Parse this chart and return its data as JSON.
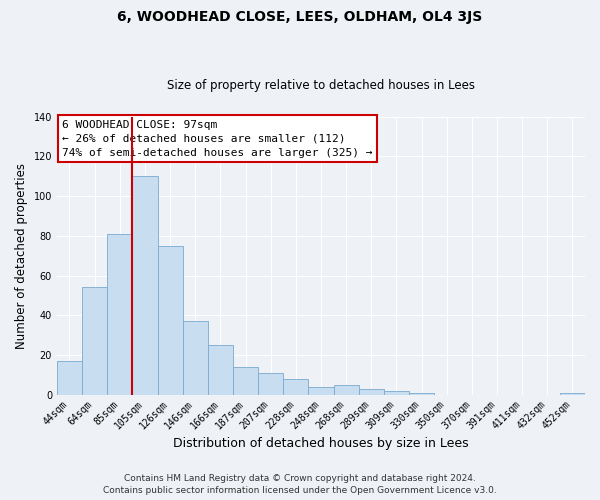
{
  "title": "6, WOODHEAD CLOSE, LEES, OLDHAM, OL4 3JS",
  "subtitle": "Size of property relative to detached houses in Lees",
  "xlabel": "Distribution of detached houses by size in Lees",
  "ylabel": "Number of detached properties",
  "bar_color": "#c8ddf0",
  "bar_edge_color": "#7aaad0",
  "categories": [
    "44sqm",
    "64sqm",
    "85sqm",
    "105sqm",
    "126sqm",
    "146sqm",
    "166sqm",
    "187sqm",
    "207sqm",
    "228sqm",
    "248sqm",
    "268sqm",
    "289sqm",
    "309sqm",
    "330sqm",
    "350sqm",
    "370sqm",
    "391sqm",
    "411sqm",
    "432sqm",
    "452sqm"
  ],
  "values": [
    17,
    54,
    81,
    110,
    75,
    37,
    25,
    14,
    11,
    8,
    4,
    5,
    3,
    2,
    1,
    0,
    0,
    0,
    0,
    0,
    1
  ],
  "ylim": [
    0,
    140
  ],
  "yticks": [
    0,
    20,
    40,
    60,
    80,
    100,
    120,
    140
  ],
  "vline_x": 2.5,
  "vline_color": "#cc0000",
  "annotation_title": "6 WOODHEAD CLOSE: 97sqm",
  "annotation_line1": "← 26% of detached houses are smaller (112)",
  "annotation_line2": "74% of semi-detached houses are larger (325) →",
  "annotation_box_color": "#ffffff",
  "annotation_box_edge": "#cc0000",
  "footer_line1": "Contains HM Land Registry data © Crown copyright and database right 2024.",
  "footer_line2": "Contains public sector information licensed under the Open Government Licence v3.0.",
  "background_color": "#eef2f7",
  "grid_color": "#ffffff",
  "title_fontsize": 10,
  "subtitle_fontsize": 8.5,
  "xlabel_fontsize": 9,
  "ylabel_fontsize": 8.5,
  "tick_fontsize": 7,
  "annotation_fontsize": 8,
  "footer_fontsize": 6.5
}
